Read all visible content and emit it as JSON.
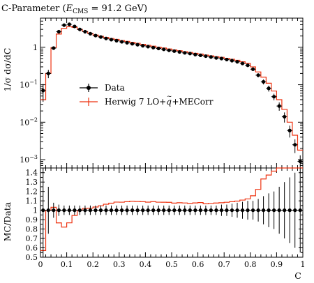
{
  "chart_data": {
    "type": "line",
    "title": "C-Parameter (E_CMS = 91.2 GeV)",
    "title_parts": {
      "prefix": "C-Parameter (",
      "var": "E",
      "sub": "CMS",
      "suffix": " = 91.2 GeV)"
    },
    "main": {
      "ylabel": "1/σ dσ/dC",
      "yscale": "log",
      "ylim": [
        0.0006,
        6
      ],
      "yticks": [
        {
          "value": 0.001,
          "base": "10",
          "exp": "−3"
        },
        {
          "value": 0.01,
          "base": "10",
          "exp": "−2"
        },
        {
          "value": 0.1,
          "base": "10",
          "exp": "−1"
        },
        {
          "value": 1,
          "base": "1",
          "exp": ""
        }
      ]
    },
    "ratio": {
      "ylabel": "MC/Data",
      "ylim": [
        0.5,
        1.45
      ],
      "yticks": [
        "0.5",
        "0.6",
        "0.7",
        "0.8",
        "0.9",
        "1",
        "1.1",
        "1.2",
        "1.3",
        "1.4"
      ]
    },
    "x": {
      "label": "C",
      "lim": [
        0,
        1
      ],
      "ticks": [
        "0",
        "0.1",
        "0.2",
        "0.3",
        "0.4",
        "0.5",
        "0.6",
        "0.7",
        "0.8",
        "0.9",
        "1"
      ]
    },
    "bin_edges": [
      0,
      0.02,
      0.04,
      0.06,
      0.08,
      0.1,
      0.12,
      0.14,
      0.16,
      0.18,
      0.2,
      0.22,
      0.24,
      0.26,
      0.28,
      0.3,
      0.32,
      0.34,
      0.36,
      0.38,
      0.4,
      0.42,
      0.44,
      0.46,
      0.48,
      0.5,
      0.52,
      0.54,
      0.56,
      0.58,
      0.6,
      0.62,
      0.64,
      0.66,
      0.68,
      0.7,
      0.72,
      0.74,
      0.76,
      0.78,
      0.8,
      0.82,
      0.84,
      0.86,
      0.88,
      0.9,
      0.92,
      0.94,
      0.96,
      0.98,
      1.0
    ],
    "series": [
      {
        "name": "Data",
        "style": "points",
        "color": "#000000",
        "values": [
          0.07,
          0.2,
          0.95,
          2.6,
          3.9,
          4.1,
          3.6,
          3.0,
          2.6,
          2.3,
          2.05,
          1.88,
          1.72,
          1.6,
          1.5,
          1.4,
          1.32,
          1.24,
          1.17,
          1.1,
          1.04,
          0.98,
          0.93,
          0.88,
          0.83,
          0.79,
          0.75,
          0.71,
          0.68,
          0.64,
          0.61,
          0.58,
          0.55,
          0.52,
          0.5,
          0.47,
          0.44,
          0.41,
          0.37,
          0.33,
          0.26,
          0.18,
          0.12,
          0.08,
          0.048,
          0.027,
          0.014,
          0.006,
          0.0025,
          0.0009
        ],
        "rel_err": [
          0.5,
          0.25,
          0.08,
          0.06,
          0.05,
          0.05,
          0.05,
          0.05,
          0.05,
          0.05,
          0.05,
          0.05,
          0.05,
          0.05,
          0.05,
          0.05,
          0.05,
          0.05,
          0.05,
          0.05,
          0.05,
          0.05,
          0.05,
          0.05,
          0.05,
          0.05,
          0.05,
          0.05,
          0.05,
          0.05,
          0.05,
          0.05,
          0.05,
          0.05,
          0.06,
          0.06,
          0.07,
          0.08,
          0.09,
          0.1,
          0.1,
          0.12,
          0.15,
          0.18,
          0.2,
          0.25,
          0.3,
          0.35,
          0.4,
          0.45
        ]
      },
      {
        "name": "Herwig 7 LO+q̃+MECorr",
        "legend_parts": {
          "prefix": "Herwig 7 LO+",
          "q": "q",
          "suffix": "+MECorr"
        },
        "style": "histogram",
        "color": "#ee3311",
        "values": [
          0.04,
          0.2,
          0.98,
          2.25,
          3.2,
          3.55,
          3.4,
          3.0,
          2.65,
          2.35,
          2.12,
          1.97,
          1.83,
          1.72,
          1.63,
          1.52,
          1.44,
          1.36,
          1.28,
          1.2,
          1.13,
          1.07,
          1.01,
          0.955,
          0.9,
          0.85,
          0.81,
          0.765,
          0.73,
          0.69,
          0.66,
          0.62,
          0.59,
          0.56,
          0.54,
          0.51,
          0.48,
          0.45,
          0.41,
          0.37,
          0.3,
          0.22,
          0.16,
          0.11,
          0.068,
          0.04,
          0.022,
          0.01,
          0.0045,
          0.0018
        ]
      }
    ],
    "legend_position": "middle-left"
  }
}
